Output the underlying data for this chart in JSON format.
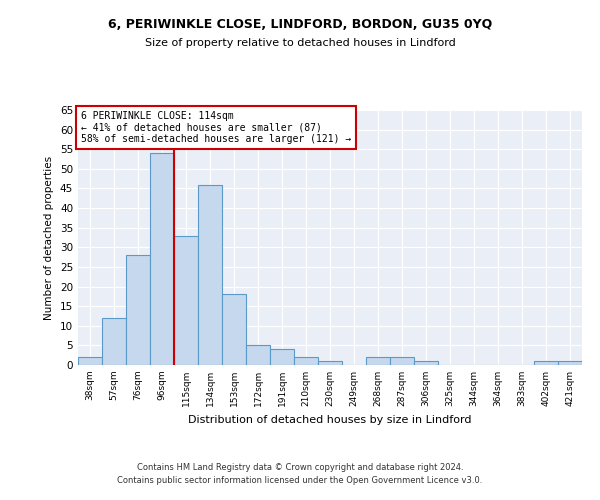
{
  "title1": "6, PERIWINKLE CLOSE, LINDFORD, BORDON, GU35 0YQ",
  "title2": "Size of property relative to detached houses in Lindford",
  "xlabel": "Distribution of detached houses by size in Lindford",
  "ylabel": "Number of detached properties",
  "categories": [
    "38sqm",
    "57sqm",
    "76sqm",
    "96sqm",
    "115sqm",
    "134sqm",
    "153sqm",
    "172sqm",
    "191sqm",
    "210sqm",
    "230sqm",
    "249sqm",
    "268sqm",
    "287sqm",
    "306sqm",
    "325sqm",
    "344sqm",
    "364sqm",
    "383sqm",
    "402sqm",
    "421sqm"
  ],
  "values": [
    2,
    12,
    28,
    54,
    33,
    46,
    18,
    5,
    4,
    2,
    1,
    0,
    2,
    2,
    1,
    0,
    0,
    0,
    0,
    1,
    1
  ],
  "bar_color": "#c5d8ed",
  "bar_edge_color": "#5a9ac8",
  "annotation_line1": "6 PERIWINKLE CLOSE: 114sqm",
  "annotation_line2": "← 41% of detached houses are smaller (87)",
  "annotation_line3": "58% of semi-detached houses are larger (121) →",
  "annotation_box_color": "#ffffff",
  "annotation_box_edge_color": "#cc0000",
  "vline_color": "#cc0000",
  "ylim": [
    0,
    65
  ],
  "yticks": [
    0,
    5,
    10,
    15,
    20,
    25,
    30,
    35,
    40,
    45,
    50,
    55,
    60,
    65
  ],
  "bg_color": "#eaeff7",
  "footer1": "Contains HM Land Registry data © Crown copyright and database right 2024.",
  "footer2": "Contains public sector information licensed under the Open Government Licence v3.0."
}
